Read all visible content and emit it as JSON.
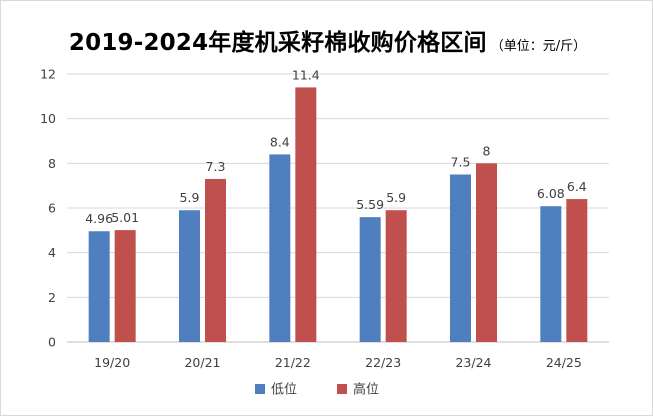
{
  "chart_data": {
    "type": "bar",
    "title": "2019-2024年度机采籽棉收购价格区间",
    "subtitle": "（单位：元/斤）",
    "categories": [
      "19/20",
      "20/21",
      "21/22",
      "22/23",
      "23/24",
      "24/25"
    ],
    "series": [
      {
        "name": "低位",
        "color": "#4f7fbf",
        "values": [
          4.96,
          5.9,
          8.4,
          5.59,
          7.5,
          6.08
        ],
        "labels": [
          "4.96",
          "5.9",
          "8.4",
          "5.59",
          "7.5",
          "6.08"
        ]
      },
      {
        "name": "高位",
        "color": "#c0504d",
        "values": [
          5.01,
          7.3,
          11.4,
          5.9,
          8,
          6.4
        ],
        "labels": [
          "5.01",
          "7.3",
          "11.4",
          "5.9",
          "8",
          "6.4"
        ]
      }
    ],
    "ylim": [
      0,
      12
    ],
    "yticks": [
      0,
      2,
      4,
      6,
      8,
      10,
      12
    ],
    "grid": true,
    "legend": "bottom"
  }
}
